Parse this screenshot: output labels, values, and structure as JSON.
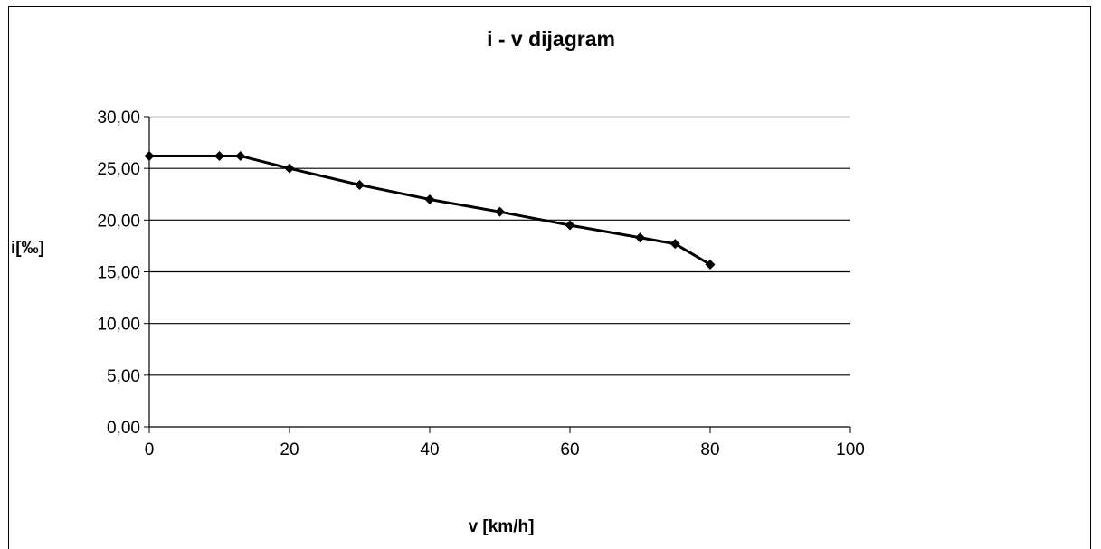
{
  "chart_data": {
    "type": "line",
    "title": "i - v  dijagram",
    "xlabel": "v [km/h]",
    "ylabel": "i[‰]",
    "xlim": [
      0,
      100
    ],
    "ylim": [
      0,
      30
    ],
    "x_ticks": [
      "0",
      "20",
      "40",
      "60",
      "80",
      "100"
    ],
    "y_ticks": [
      "0,00",
      "5,00",
      "10,00",
      "15,00",
      "20,00",
      "25,00",
      "30,00"
    ],
    "grid": "horizontal",
    "legend": "none",
    "series": [
      {
        "color": "#000000",
        "marker": "diamond",
        "x": [
          0,
          10,
          13,
          20,
          30,
          40,
          50,
          60,
          70,
          75,
          80
        ],
        "y": [
          26.2,
          26.2,
          26.2,
          25.0,
          23.4,
          22.0,
          20.8,
          19.5,
          18.3,
          17.7,
          15.7
        ]
      }
    ]
  }
}
